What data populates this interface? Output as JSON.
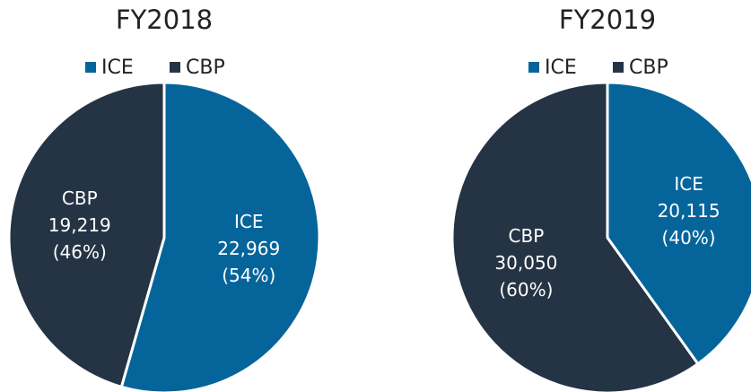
{
  "chart_data": [
    {
      "type": "pie",
      "title": "FY2018",
      "categories": [
        "ICE",
        "CBP"
      ],
      "values": [
        22969,
        19219
      ],
      "value_labels": [
        "22,969",
        "19,219"
      ],
      "percent_labels": [
        "(54%)",
        "(46%)"
      ],
      "colors": [
        "#05659b",
        "#243444"
      ],
      "legend": "top"
    },
    {
      "type": "pie",
      "title": "FY2019",
      "categories": [
        "ICE",
        "CBP"
      ],
      "values": [
        20115,
        30050
      ],
      "value_labels": [
        "20,115",
        "30,050"
      ],
      "percent_labels": [
        "(40%)",
        "(60%)"
      ],
      "colors": [
        "#05659b",
        "#243444"
      ],
      "legend": "top"
    }
  ]
}
